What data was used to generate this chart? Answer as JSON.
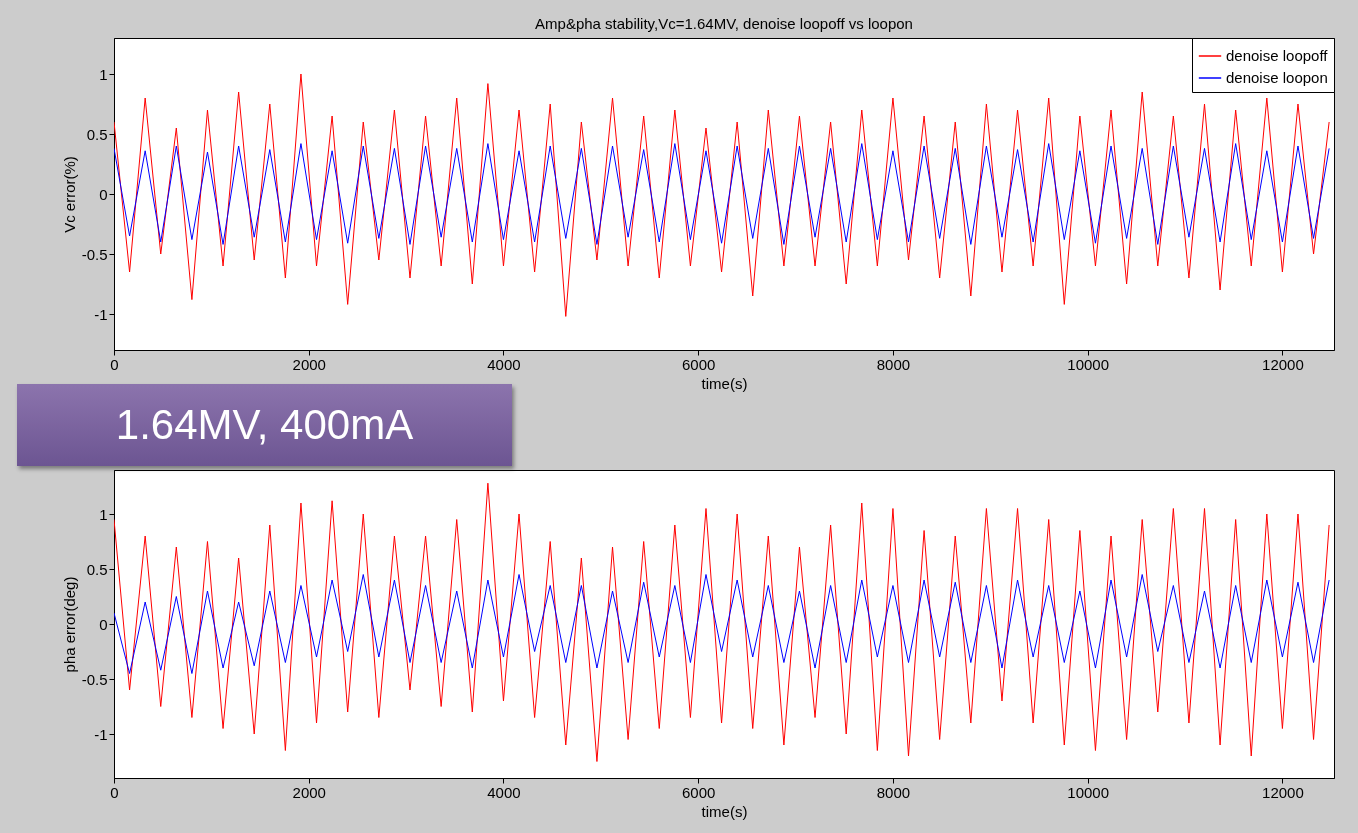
{
  "chart_data": [
    {
      "type": "line",
      "title": "Amp&pha stability,Vc=1.64MV, denoise loopoff vs loopon",
      "xlabel": "time(s)",
      "ylabel": "Vc error(%)",
      "annotations": [
        "1.64MV, 400mA"
      ],
      "xlim": [
        0,
        12530
      ],
      "xticks": [
        0,
        2000,
        4000,
        6000,
        8000,
        10000,
        12000
      ],
      "ylim": [
        -1.3,
        1.3
      ],
      "yticks": [
        -1,
        -0.5,
        0,
        0.5,
        1
      ],
      "grid": false,
      "legend": "top right",
      "x": [
        0,
        160,
        320,
        480,
        640,
        800,
        960,
        1120,
        1280,
        1440,
        1600,
        1760,
        1920,
        2080,
        2240,
        2400,
        2560,
        2720,
        2880,
        3040,
        3200,
        3360,
        3520,
        3680,
        3840,
        4000,
        4160,
        4320,
        4480,
        4640,
        4800,
        4960,
        5120,
        5280,
        5440,
        5600,
        5760,
        5920,
        6080,
        6240,
        6400,
        6560,
        6720,
        6880,
        7040,
        7200,
        7360,
        7520,
        7680,
        7840,
        8000,
        8160,
        8320,
        8480,
        8640,
        8800,
        8960,
        9120,
        9280,
        9440,
        9600,
        9760,
        9920,
        10080,
        10240,
        10400,
        10560,
        10720,
        10880,
        11040,
        11200,
        11360,
        11520,
        11680,
        11840,
        12000,
        12160,
        12320,
        12480
      ],
      "series": [
        {
          "name": "denoise loopoff",
          "color": "#ff0000",
          "values": [
            0.6,
            -0.65,
            0.8,
            -0.5,
            0.55,
            -0.88,
            0.7,
            -0.6,
            0.85,
            -0.55,
            0.75,
            -0.7,
            1.0,
            -0.6,
            0.65,
            -0.92,
            0.6,
            -0.55,
            0.7,
            -0.7,
            0.65,
            -0.6,
            0.8,
            -0.75,
            0.92,
            -0.6,
            0.7,
            -0.65,
            0.75,
            -1.02,
            0.6,
            -0.55,
            0.8,
            -0.6,
            0.65,
            -0.7,
            0.7,
            -0.6,
            0.55,
            -0.65,
            0.6,
            -0.85,
            0.7,
            -0.6,
            0.65,
            -0.6,
            0.6,
            -0.75,
            0.7,
            -0.6,
            0.8,
            -0.55,
            0.65,
            -0.7,
            0.6,
            -0.85,
            0.75,
            -0.65,
            0.7,
            -0.6,
            0.8,
            -0.92,
            0.65,
            -0.6,
            0.7,
            -0.75,
            0.85,
            -0.6,
            0.65,
            -0.7,
            0.75,
            -0.8,
            0.7,
            -0.6,
            0.8,
            -0.65,
            0.75,
            -0.5,
            0.6
          ]
        },
        {
          "name": "denoise loopon",
          "color": "#0000ff",
          "values": [
            0.38,
            -0.35,
            0.36,
            -0.4,
            0.4,
            -0.38,
            0.35,
            -0.42,
            0.4,
            -0.36,
            0.37,
            -0.4,
            0.42,
            -0.38,
            0.36,
            -0.41,
            0.4,
            -0.37,
            0.38,
            -0.42,
            0.4,
            -0.36,
            0.38,
            -0.4,
            0.42,
            -0.38,
            0.36,
            -0.4,
            0.4,
            -0.37,
            0.38,
            -0.42,
            0.4,
            -0.36,
            0.37,
            -0.4,
            0.42,
            -0.38,
            0.36,
            -0.41,
            0.4,
            -0.37,
            0.38,
            -0.42,
            0.4,
            -0.36,
            0.38,
            -0.4,
            0.42,
            -0.38,
            0.36,
            -0.4,
            0.4,
            -0.37,
            0.38,
            -0.42,
            0.4,
            -0.36,
            0.37,
            -0.4,
            0.42,
            -0.38,
            0.36,
            -0.41,
            0.4,
            -0.37,
            0.38,
            -0.42,
            0.4,
            -0.36,
            0.38,
            -0.4,
            0.42,
            -0.38,
            0.36,
            -0.4,
            0.4,
            -0.37,
            0.38
          ]
        }
      ]
    },
    {
      "type": "line",
      "xlabel": "time(s)",
      "ylabel": "pha error(deg)",
      "xlim": [
        0,
        12530
      ],
      "xticks": [
        0,
        2000,
        4000,
        6000,
        8000,
        10000,
        12000
      ],
      "ylim": [
        -1.4,
        1.4
      ],
      "yticks": [
        -1,
        -0.5,
        0,
        0.5,
        1
      ],
      "grid": false,
      "legend": "top right",
      "x": [
        0,
        160,
        320,
        480,
        640,
        800,
        960,
        1120,
        1280,
        1440,
        1600,
        1760,
        1920,
        2080,
        2240,
        2400,
        2560,
        2720,
        2880,
        3040,
        3200,
        3360,
        3520,
        3680,
        3840,
        4000,
        4160,
        4320,
        4480,
        4640,
        4800,
        4960,
        5120,
        5280,
        5440,
        5600,
        5760,
        5920,
        6080,
        6240,
        6400,
        6560,
        6720,
        6880,
        7040,
        7200,
        7360,
        7520,
        7680,
        7840,
        8000,
        8160,
        8320,
        8480,
        8640,
        8800,
        8960,
        9120,
        9280,
        9440,
        9600,
        9760,
        9920,
        10080,
        10240,
        10400,
        10560,
        10720,
        10880,
        11040,
        11200,
        11360,
        11520,
        11680,
        11840,
        12000,
        12160,
        12320,
        12480
      ],
      "series": [
        {
          "name": "denoise loopoff",
          "color": "#ff0000",
          "values": [
            0.95,
            -0.6,
            0.8,
            -0.75,
            0.7,
            -0.85,
            0.75,
            -0.95,
            0.6,
            -1.0,
            0.9,
            -1.15,
            1.1,
            -0.9,
            1.12,
            -0.8,
            1.0,
            -0.85,
            0.8,
            -0.6,
            0.8,
            -0.75,
            0.95,
            -0.8,
            1.28,
            -0.7,
            1.0,
            -0.85,
            0.75,
            -1.1,
            0.6,
            -1.25,
            0.7,
            -1.05,
            0.75,
            -0.95,
            0.9,
            -0.85,
            1.05,
            -0.9,
            1.0,
            -0.95,
            0.8,
            -1.1,
            0.7,
            -0.85,
            0.9,
            -1.0,
            1.1,
            -1.15,
            1.05,
            -1.2,
            0.85,
            -1.05,
            0.8,
            -0.9,
            1.05,
            -0.7,
            1.05,
            -0.9,
            0.95,
            -1.1,
            0.85,
            -1.15,
            0.8,
            -1.05,
            0.95,
            -0.8,
            1.05,
            -0.9,
            1.05,
            -1.1,
            0.95,
            -1.2,
            1.0,
            -0.95,
            1.0,
            -1.05,
            0.9
          ]
        },
        {
          "name": "denoise loopon",
          "color": "#0000ff",
          "values": [
            0.1,
            -0.45,
            0.2,
            -0.42,
            0.25,
            -0.45,
            0.3,
            -0.4,
            0.2,
            -0.38,
            0.3,
            -0.35,
            0.35,
            -0.3,
            0.4,
            -0.25,
            0.45,
            -0.3,
            0.4,
            -0.35,
            0.35,
            -0.35,
            0.3,
            -0.4,
            0.4,
            -0.3,
            0.45,
            -0.25,
            0.35,
            -0.35,
            0.35,
            -0.4,
            0.3,
            -0.35,
            0.38,
            -0.3,
            0.35,
            -0.35,
            0.45,
            -0.25,
            0.4,
            -0.3,
            0.35,
            -0.35,
            0.3,
            -0.4,
            0.35,
            -0.35,
            0.4,
            -0.3,
            0.35,
            -0.35,
            0.4,
            -0.3,
            0.38,
            -0.35,
            0.35,
            -0.4,
            0.4,
            -0.3,
            0.35,
            -0.35,
            0.3,
            -0.4,
            0.4,
            -0.3,
            0.45,
            -0.25,
            0.35,
            -0.35,
            0.3,
            -0.4,
            0.35,
            -0.35,
            0.4,
            -0.3,
            0.38,
            -0.35,
            0.4
          ]
        }
      ]
    }
  ]
}
